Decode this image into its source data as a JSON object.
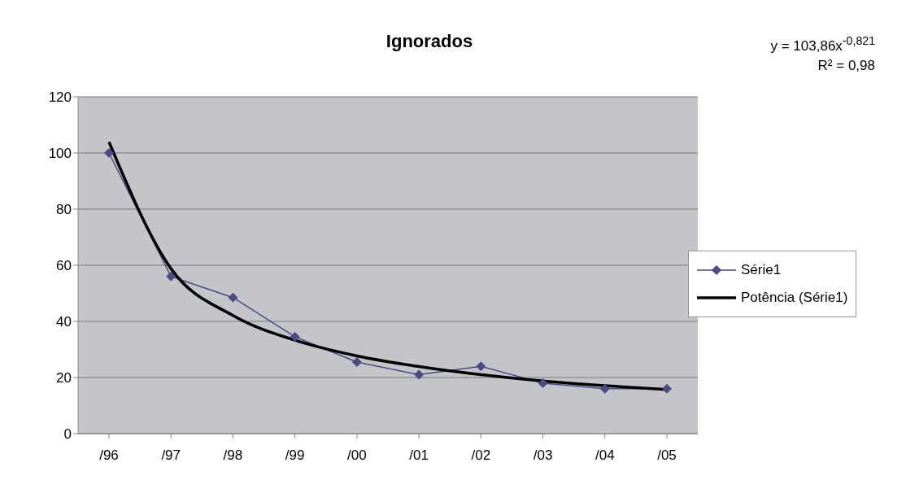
{
  "chart_data": {
    "type": "line",
    "title": "Ignorados",
    "categories": [
      "/96",
      "/97",
      "/98",
      "/99",
      "/00",
      "/01",
      "/02",
      "/03",
      "/04",
      "/05"
    ],
    "series": [
      {
        "name": "Série1",
        "color": "#4b4a86",
        "marker": "diamond",
        "values": [
          100,
          56,
          48.5,
          34.5,
          25.5,
          21,
          24,
          18,
          16,
          16
        ]
      },
      {
        "name": "Potência (Série1)",
        "color": "#000000",
        "marker": "none",
        "values": [
          103.9,
          58.8,
          42.1,
          33.3,
          27.7,
          23.9,
          21,
          18.8,
          17.1,
          15.7
        ]
      }
    ],
    "ylim": [
      0,
      120
    ],
    "yticks": [
      0,
      20,
      40,
      60,
      80,
      100,
      120
    ],
    "grid": "y",
    "legend": "right",
    "annotations": [
      "y = 103,86x$^{-0,821}$",
      "R² = 0,98"
    ]
  }
}
